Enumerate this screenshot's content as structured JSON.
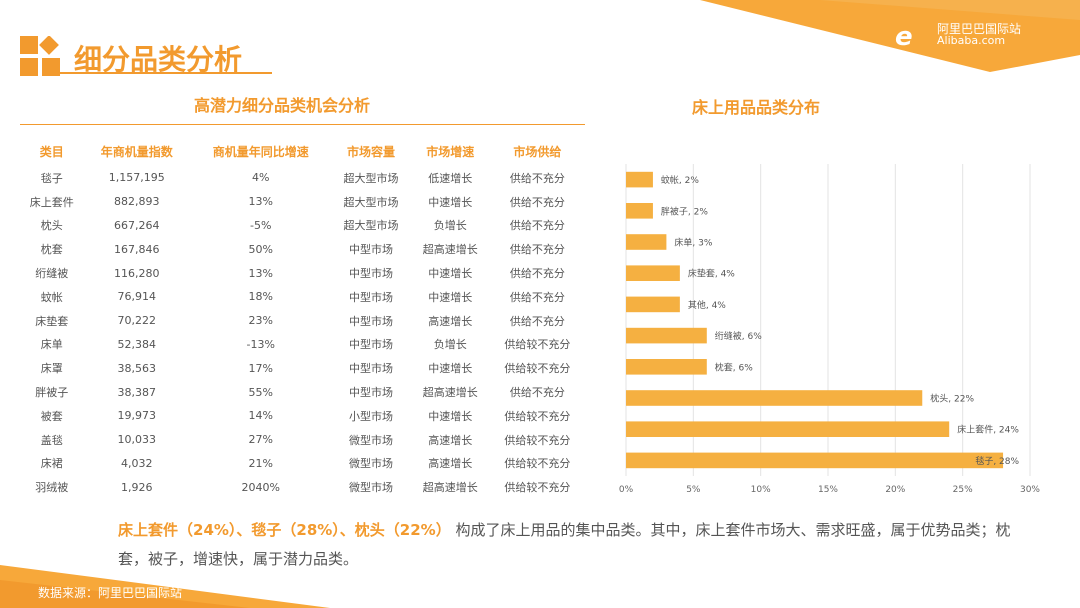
{
  "brand": {
    "logo_cn": "阿里巴巴国际站",
    "logo_en": "Alibaba.com",
    "accent": "#f29a2e"
  },
  "page_title": "细分品类分析",
  "table": {
    "title": "高潜力细分品类机会分析",
    "headers": [
      "类目",
      "年商机量指数",
      "商机量年同比增速",
      "市场容量",
      "市场增速",
      "市场供给"
    ],
    "rows": [
      [
        "毯子",
        "1,157,195",
        "4%",
        "超大型市场",
        "低速增长",
        "供给不充分"
      ],
      [
        "床上套件",
        "882,893",
        "13%",
        "超大型市场",
        "中速增长",
        "供给不充分"
      ],
      [
        "枕头",
        "667,264",
        "-5%",
        "超大型市场",
        "负增长",
        "供给不充分"
      ],
      [
        "枕套",
        "167,846",
        "50%",
        "中型市场",
        "超高速增长",
        "供给不充分"
      ],
      [
        "绗缝被",
        "116,280",
        "13%",
        "中型市场",
        "中速增长",
        "供给不充分"
      ],
      [
        "蚊帐",
        "76,914",
        "18%",
        "中型市场",
        "中速增长",
        "供给不充分"
      ],
      [
        "床垫套",
        "70,222",
        "23%",
        "中型市场",
        "高速增长",
        "供给不充分"
      ],
      [
        "床单",
        "52,384",
        "-13%",
        "中型市场",
        "负增长",
        "供给较不充分"
      ],
      [
        "床罩",
        "38,563",
        "17%",
        "中型市场",
        "中速增长",
        "供给较不充分"
      ],
      [
        "胖被子",
        "38,387",
        "55%",
        "中型市场",
        "超高速增长",
        "供给不充分"
      ],
      [
        "被套",
        "19,973",
        "14%",
        "小型市场",
        "中速增长",
        "供给较不充分"
      ],
      [
        "盖毯",
        "10,033",
        "27%",
        "微型市场",
        "高速增长",
        "供给较不充分"
      ],
      [
        "床裙",
        "4,032",
        "21%",
        "微型市场",
        "高速增长",
        "供给较不充分"
      ],
      [
        "羽绒被",
        "1,926",
        "2040%",
        "微型市场",
        "超高速增长",
        "供给较不充分"
      ]
    ]
  },
  "chart_data": {
    "type": "bar",
    "orientation": "horizontal",
    "title": "床上用品品类分布",
    "categories": [
      "蚊帐",
      "胖被子",
      "床单",
      "床垫套",
      "其他",
      "绗缝被",
      "枕套",
      "枕头",
      "床上套件",
      "毯子"
    ],
    "values": [
      2,
      2,
      3,
      4,
      4,
      6,
      6,
      22,
      24,
      28
    ],
    "data_labels": [
      "蚊帐, 2%",
      "胖被子, 2%",
      "床单, 3%",
      "床垫套, 4%",
      "其他, 4%",
      "绗缝被, 6%",
      "枕套, 6%",
      "枕头, 22%",
      "床上套件, 24%",
      "毯子, 28%"
    ],
    "xlim": [
      0,
      30
    ],
    "xticks": [
      "0%",
      "5%",
      "10%",
      "15%",
      "20%",
      "25%",
      "30%"
    ],
    "grid": true,
    "bar_color": "#f5b041"
  },
  "conclusion": {
    "highlight": "床上套件（24%）、毯子（28%）、枕头（22%）",
    "rest": "构成了床上用品的集中品类。其中，床上套件市场大、需求旺盛，属于优势品类；枕套，被子，增速快，属于潜力品类。"
  },
  "source": "数据来源：阿里巴巴国际站"
}
